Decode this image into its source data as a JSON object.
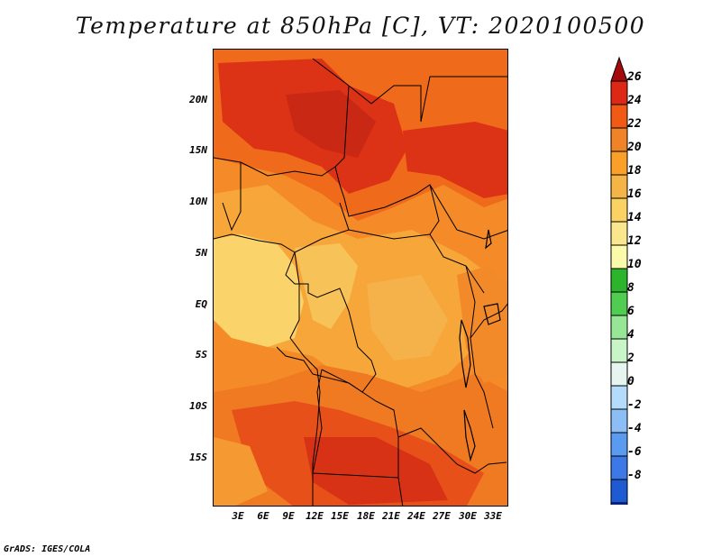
{
  "title": "Temperature at 850hPa [C], VT: 2020100500",
  "map": {
    "lat_labels": [
      "20N",
      "15N",
      "10N",
      "5N",
      "EQ",
      "5S",
      "10S",
      "15S"
    ],
    "lon_labels": [
      "3E",
      "6E",
      "9E",
      "12E",
      "15E",
      "18E",
      "21E",
      "24E",
      "27E",
      "30E",
      "33E"
    ]
  },
  "colorbar": {
    "labels": [
      "26",
      "24",
      "22",
      "20",
      "18",
      "16",
      "14",
      "12",
      "10",
      "8",
      "6",
      "4",
      "2",
      "0",
      "-2",
      "-4",
      "-6",
      "-8"
    ],
    "colors": [
      "#a50a0a",
      "#dc2814",
      "#f05a14",
      "#f08228",
      "#faa028",
      "#f5b446",
      "#fad264",
      "#fae68c",
      "#fafaaa",
      "#2db42d",
      "#50cd50",
      "#96e696",
      "#c8f5c8",
      "#e6f5f0",
      "#b4dcfa",
      "#8cbef5",
      "#5a9bf0",
      "#3c78e6",
      "#1e5ad2",
      "#1432b4",
      "#0a1482",
      "#dcdcf5"
    ]
  },
  "footer": "GrADS: IGES/COLA"
}
